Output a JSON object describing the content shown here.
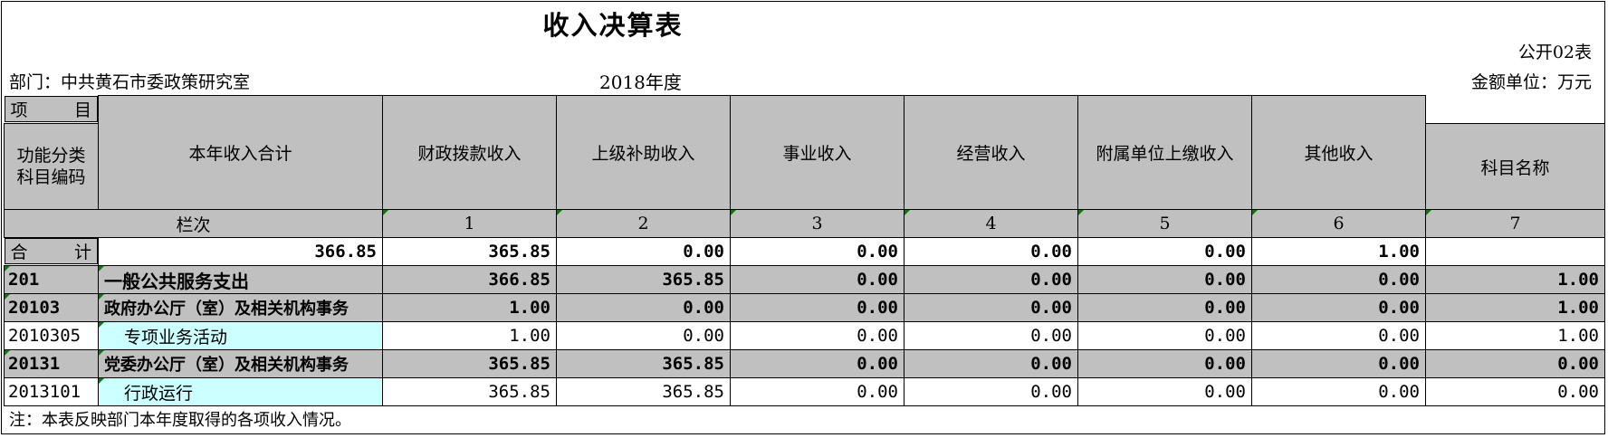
{
  "title": "收入决算表",
  "table_code": "公开02表",
  "department": "部门：中共黄石市委政策研究室",
  "year": "2018年度",
  "unit": "金额单位：万元",
  "header": {
    "xiang": "项",
    "mu": "目",
    "func_code": "功能分类科目编码",
    "func_code_l1": "功能分类",
    "func_code_l2": "科目编码",
    "subject_name": "科目名称",
    "columns": [
      "本年收入合计",
      "财政拨款收入",
      "上级补助收入",
      "事业收入",
      "经营收入",
      "附属单位上缴收入",
      "其他收入"
    ],
    "lanci": "栏次",
    "col_numbers": [
      "1",
      "2",
      "3",
      "4",
      "5",
      "6",
      "7"
    ]
  },
  "total_row": {
    "he": "合",
    "ji": "计",
    "values": [
      "366.85",
      "365.85",
      "0.00",
      "0.00",
      "0.00",
      "0.00",
      "1.00"
    ]
  },
  "rows": [
    {
      "code": "201",
      "name": "一般公共服务支出",
      "values": [
        "366.85",
        "365.85",
        "0.00",
        "0.00",
        "0.00",
        "0.00",
        "1.00"
      ]
    },
    {
      "code": "20103",
      "name": "政府办公厅（室）及相关机构事务",
      "values": [
        "1.00",
        "0.00",
        "0.00",
        "0.00",
        "0.00",
        "0.00",
        "1.00"
      ]
    },
    {
      "code": "2010305",
      "name": "专项业务活动",
      "values": [
        "1.00",
        "0.00",
        "0.00",
        "0.00",
        "0.00",
        "0.00",
        "1.00"
      ]
    },
    {
      "code": "20131",
      "name": "党委办公厅（室）及相关机构事务",
      "values": [
        "365.85",
        "365.85",
        "0.00",
        "0.00",
        "0.00",
        "0.00",
        "0.00"
      ]
    },
    {
      "code": "2013101",
      "name": "行政运行",
      "values": [
        "365.85",
        "365.85",
        "0.00",
        "0.00",
        "0.00",
        "0.00",
        "0.00"
      ]
    }
  ],
  "note": "注：本表反映部门本年度取得的各项收入情况。"
}
